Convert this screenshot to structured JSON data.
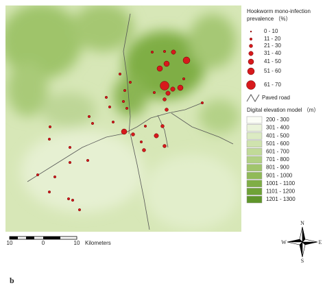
{
  "legend": {
    "prevalence_title": [
      "Hookworm mono-infection",
      "prevalence （%）"
    ],
    "prevalence_classes": [
      "0 - 10",
      "11 - 20",
      "21 - 30",
      "31 - 40",
      "41 - 50",
      "51 - 60",
      "61 - 70"
    ],
    "road": "Paved road",
    "dem_title": "Digital elevation model （m）",
    "dem_classes": [
      "200 - 300",
      "301 - 400",
      "401 - 500",
      "501 - 600",
      "601 - 700",
      "701 - 800",
      "801 - 900",
      "901 - 1000",
      "1001 - 1100",
      "1101 - 1200",
      "1201 - 1300"
    ]
  },
  "scale_bar": {
    "labels": [
      "10",
      "0",
      "10"
    ],
    "unit": "Kilometers"
  },
  "compass": {
    "n": "N",
    "s": "S",
    "e": "E",
    "w": "W"
  },
  "panel_label": "b"
}
